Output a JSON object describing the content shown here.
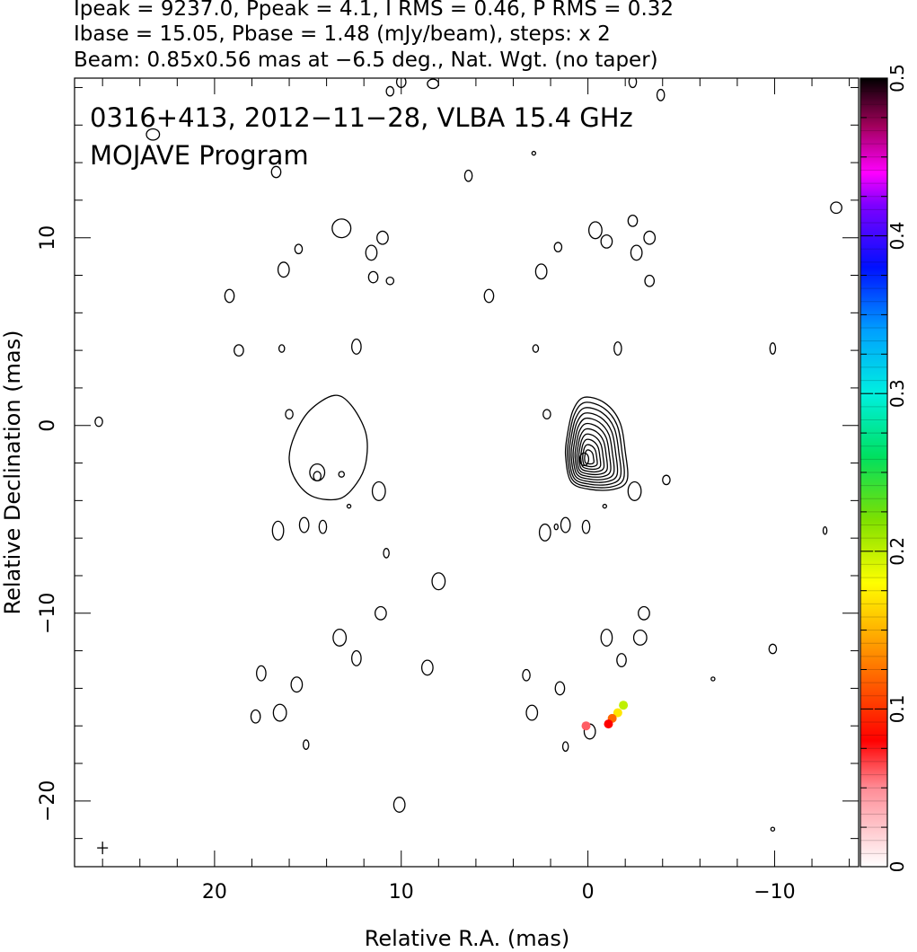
{
  "header": {
    "line1": "Ipeak = 9237.0, Ppeak = 4.1, I RMS = 0.46, P RMS = 0.32",
    "line2": "Ibase = 15.05, Pbase = 1.48 (mJy/beam), steps: x 2",
    "line3": "Beam: 0.85x0.56 mas at −6.5 deg., Nat. Wgt. (no taper)"
  },
  "chart_data": {
    "type": "heatmap",
    "title": "0316+413, 2012−11−28, VLBA 15.4 GHz",
    "subtitle": "MOJAVE Program",
    "xlabel": "Relative R.A. (mas)",
    "ylabel": "Relative Declination (mas)",
    "xlim": [
      27.5,
      -14.5
    ],
    "ylim": [
      -23.5,
      18.5
    ],
    "x_ticks": [
      {
        "value": 20,
        "label": "20"
      },
      {
        "value": 10,
        "label": "10"
      },
      {
        "value": 0,
        "label": "0"
      },
      {
        "value": -10,
        "label": "−10"
      }
    ],
    "y_ticks": [
      {
        "value": 10,
        "label": "10"
      },
      {
        "value": 0,
        "label": "0"
      },
      {
        "value": -10,
        "label": "−10"
      },
      {
        "value": -20,
        "label": "−20"
      }
    ],
    "colorbar": {
      "range": [
        0,
        0.5
      ],
      "ticks": [
        {
          "value": 0,
          "label": "0"
        },
        {
          "value": 0.1,
          "label": "0.1"
        },
        {
          "value": 0.2,
          "label": "0.2"
        },
        {
          "value": 0.3,
          "label": "0.3"
        },
        {
          "value": 0.4,
          "label": "0.4"
        },
        {
          "value": 0.5,
          "label": "0.5"
        }
      ]
    },
    "core_contours": {
      "x": 0.0,
      "y": -0.6,
      "levels": 11,
      "shape": [
        [
          0.2,
          1.5
        ],
        [
          -0.9,
          1.2
        ],
        [
          -1.7,
          0.2
        ],
        [
          -2.0,
          -1.4
        ],
        [
          -2.1,
          -2.9
        ],
        [
          -1.4,
          -3.4
        ],
        [
          -0.1,
          -3.4
        ],
        [
          0.9,
          -3.0
        ],
        [
          1.2,
          -1.6
        ],
        [
          1.1,
          -0.5
        ],
        [
          0.8,
          0.8
        ]
      ]
    },
    "ghost_contour": {
      "x": 14.2,
      "y": -0.6,
      "shape": [
        [
          13.6,
          1.6
        ],
        [
          12.7,
          1.1
        ],
        [
          11.9,
          -0.4
        ],
        [
          11.9,
          -2.0
        ],
        [
          12.4,
          -3.1
        ],
        [
          13.3,
          -3.9
        ],
        [
          14.7,
          -3.8
        ],
        [
          15.6,
          -3.0
        ],
        [
          16.0,
          -1.8
        ],
        [
          15.7,
          -0.5
        ],
        [
          14.9,
          0.8
        ]
      ]
    },
    "pol_spots": [
      {
        "x": -1.6,
        "y": -15.3,
        "level": 0.17
      },
      {
        "x": -1.3,
        "y": -15.6,
        "level": 0.12
      },
      {
        "x": -1.1,
        "y": -15.9,
        "level": 0.08
      },
      {
        "x": -1.9,
        "y": -14.9,
        "level": 0.2
      },
      {
        "x": 0.1,
        "y": -16.0,
        "level": 0.06
      }
    ],
    "blobs": [
      [
        10.0,
        18.3,
        0.25,
        0.3
      ],
      [
        10.6,
        17.8,
        0.2,
        0.25
      ],
      [
        8.3,
        18.2,
        0.3,
        0.25
      ],
      [
        -2.4,
        18.3,
        0.2,
        0.3
      ],
      [
        -3.9,
        17.6,
        0.2,
        0.3
      ],
      [
        23.3,
        15.5,
        0.35,
        0.3
      ],
      [
        16.7,
        13.5,
        0.25,
        0.3
      ],
      [
        6.4,
        13.3,
        0.2,
        0.3
      ],
      [
        2.9,
        14.5,
        0.1,
        0.1
      ],
      [
        -13.3,
        11.6,
        0.3,
        0.3
      ],
      [
        11.6,
        9.2,
        0.3,
        0.4
      ],
      [
        11.0,
        10.0,
        0.3,
        0.35
      ],
      [
        11.5,
        7.9,
        0.25,
        0.3
      ],
      [
        10.6,
        7.7,
        0.2,
        0.2
      ],
      [
        -0.4,
        10.4,
        0.35,
        0.45
      ],
      [
        -1.0,
        9.8,
        0.3,
        0.35
      ],
      [
        -2.4,
        10.9,
        0.25,
        0.3
      ],
      [
        -2.6,
        9.2,
        0.3,
        0.4
      ],
      [
        -3.3,
        10.0,
        0.3,
        0.35
      ],
      [
        -3.3,
        7.7,
        0.25,
        0.3
      ],
      [
        1.6,
        9.5,
        0.2,
        0.25
      ],
      [
        2.5,
        8.2,
        0.3,
        0.4
      ],
      [
        5.3,
        6.9,
        0.25,
        0.35
      ],
      [
        16.3,
        8.3,
        0.3,
        0.4
      ],
      [
        15.5,
        9.4,
        0.2,
        0.25
      ],
      [
        19.2,
        6.9,
        0.25,
        0.35
      ],
      [
        18.7,
        4.0,
        0.25,
        0.3
      ],
      [
        16.4,
        4.1,
        0.15,
        0.2
      ],
      [
        12.4,
        4.2,
        0.25,
        0.4
      ],
      [
        2.8,
        4.1,
        0.15,
        0.2
      ],
      [
        -1.6,
        4.1,
        0.2,
        0.35
      ],
      [
        26.2,
        0.2,
        0.2,
        0.25
      ],
      [
        16.0,
        0.6,
        0.2,
        0.25
      ],
      [
        2.2,
        0.6,
        0.2,
        0.25
      ],
      [
        14.5,
        -2.5,
        0.4,
        0.45
      ],
      [
        14.5,
        -2.7,
        0.2,
        0.25
      ],
      [
        13.2,
        -2.6,
        0.15,
        0.15
      ],
      [
        11.2,
        -3.5,
        0.35,
        0.5
      ],
      [
        12.8,
        -4.3,
        0.1,
        0.1
      ],
      [
        -2.5,
        -3.5,
        0.35,
        0.5
      ],
      [
        -4.2,
        -2.9,
        0.2,
        0.25
      ],
      [
        -0.9,
        -4.3,
        0.1,
        0.1
      ],
      [
        16.6,
        -5.6,
        0.3,
        0.5
      ],
      [
        15.2,
        -5.3,
        0.25,
        0.4
      ],
      [
        14.2,
        -5.4,
        0.2,
        0.35
      ],
      [
        2.3,
        -5.7,
        0.3,
        0.45
      ],
      [
        1.2,
        -5.3,
        0.25,
        0.4
      ],
      [
        1.7,
        -5.4,
        0.1,
        0.15
      ],
      [
        0.1,
        -5.4,
        0.2,
        0.35
      ],
      [
        13.3,
        -11.3,
        0.35,
        0.45
      ],
      [
        11.1,
        -10.0,
        0.3,
        0.35
      ],
      [
        12.4,
        -12.4,
        0.25,
        0.4
      ],
      [
        -1.0,
        -11.3,
        0.3,
        0.45
      ],
      [
        -2.8,
        -11.3,
        0.35,
        0.4
      ],
      [
        -3.0,
        -10.0,
        0.3,
        0.35
      ],
      [
        -1.8,
        -12.5,
        0.25,
        0.35
      ],
      [
        3.3,
        -13.3,
        0.2,
        0.3
      ],
      [
        17.5,
        -13.2,
        0.25,
        0.4
      ],
      [
        15.6,
        -13.8,
        0.3,
        0.4
      ],
      [
        16.5,
        -15.3,
        0.35,
        0.45
      ],
      [
        17.8,
        -15.5,
        0.25,
        0.35
      ],
      [
        15.1,
        -17.0,
        0.15,
        0.25
      ],
      [
        3.0,
        -15.3,
        0.3,
        0.4
      ],
      [
        1.5,
        -14.0,
        0.25,
        0.35
      ],
      [
        1.2,
        -17.1,
        0.15,
        0.25
      ],
      [
        10.1,
        -20.2,
        0.3,
        0.4
      ],
      [
        -9.9,
        -21.5,
        0.1,
        0.1
      ],
      [
        -6.7,
        -13.5,
        0.1,
        0.1
      ],
      [
        -9.9,
        -11.9,
        0.2,
        0.25
      ],
      [
        -9.9,
        4.1,
        0.15,
        0.3
      ],
      [
        8.0,
        -8.3,
        0.35,
        0.45
      ],
      [
        8.6,
        -12.9,
        0.3,
        0.4
      ],
      [
        10.8,
        -6.8,
        0.15,
        0.25
      ],
      [
        -12.7,
        -5.6,
        0.1,
        0.2
      ],
      [
        -0.1,
        -16.3,
        0.3,
        0.4
      ],
      [
        15.0,
        1.8,
        0,
        0
      ],
      [
        13.2,
        10.5,
        0.5,
        0.5
      ]
    ],
    "beam_marker": {
      "x": 26.0,
      "y": -22.5
    }
  }
}
